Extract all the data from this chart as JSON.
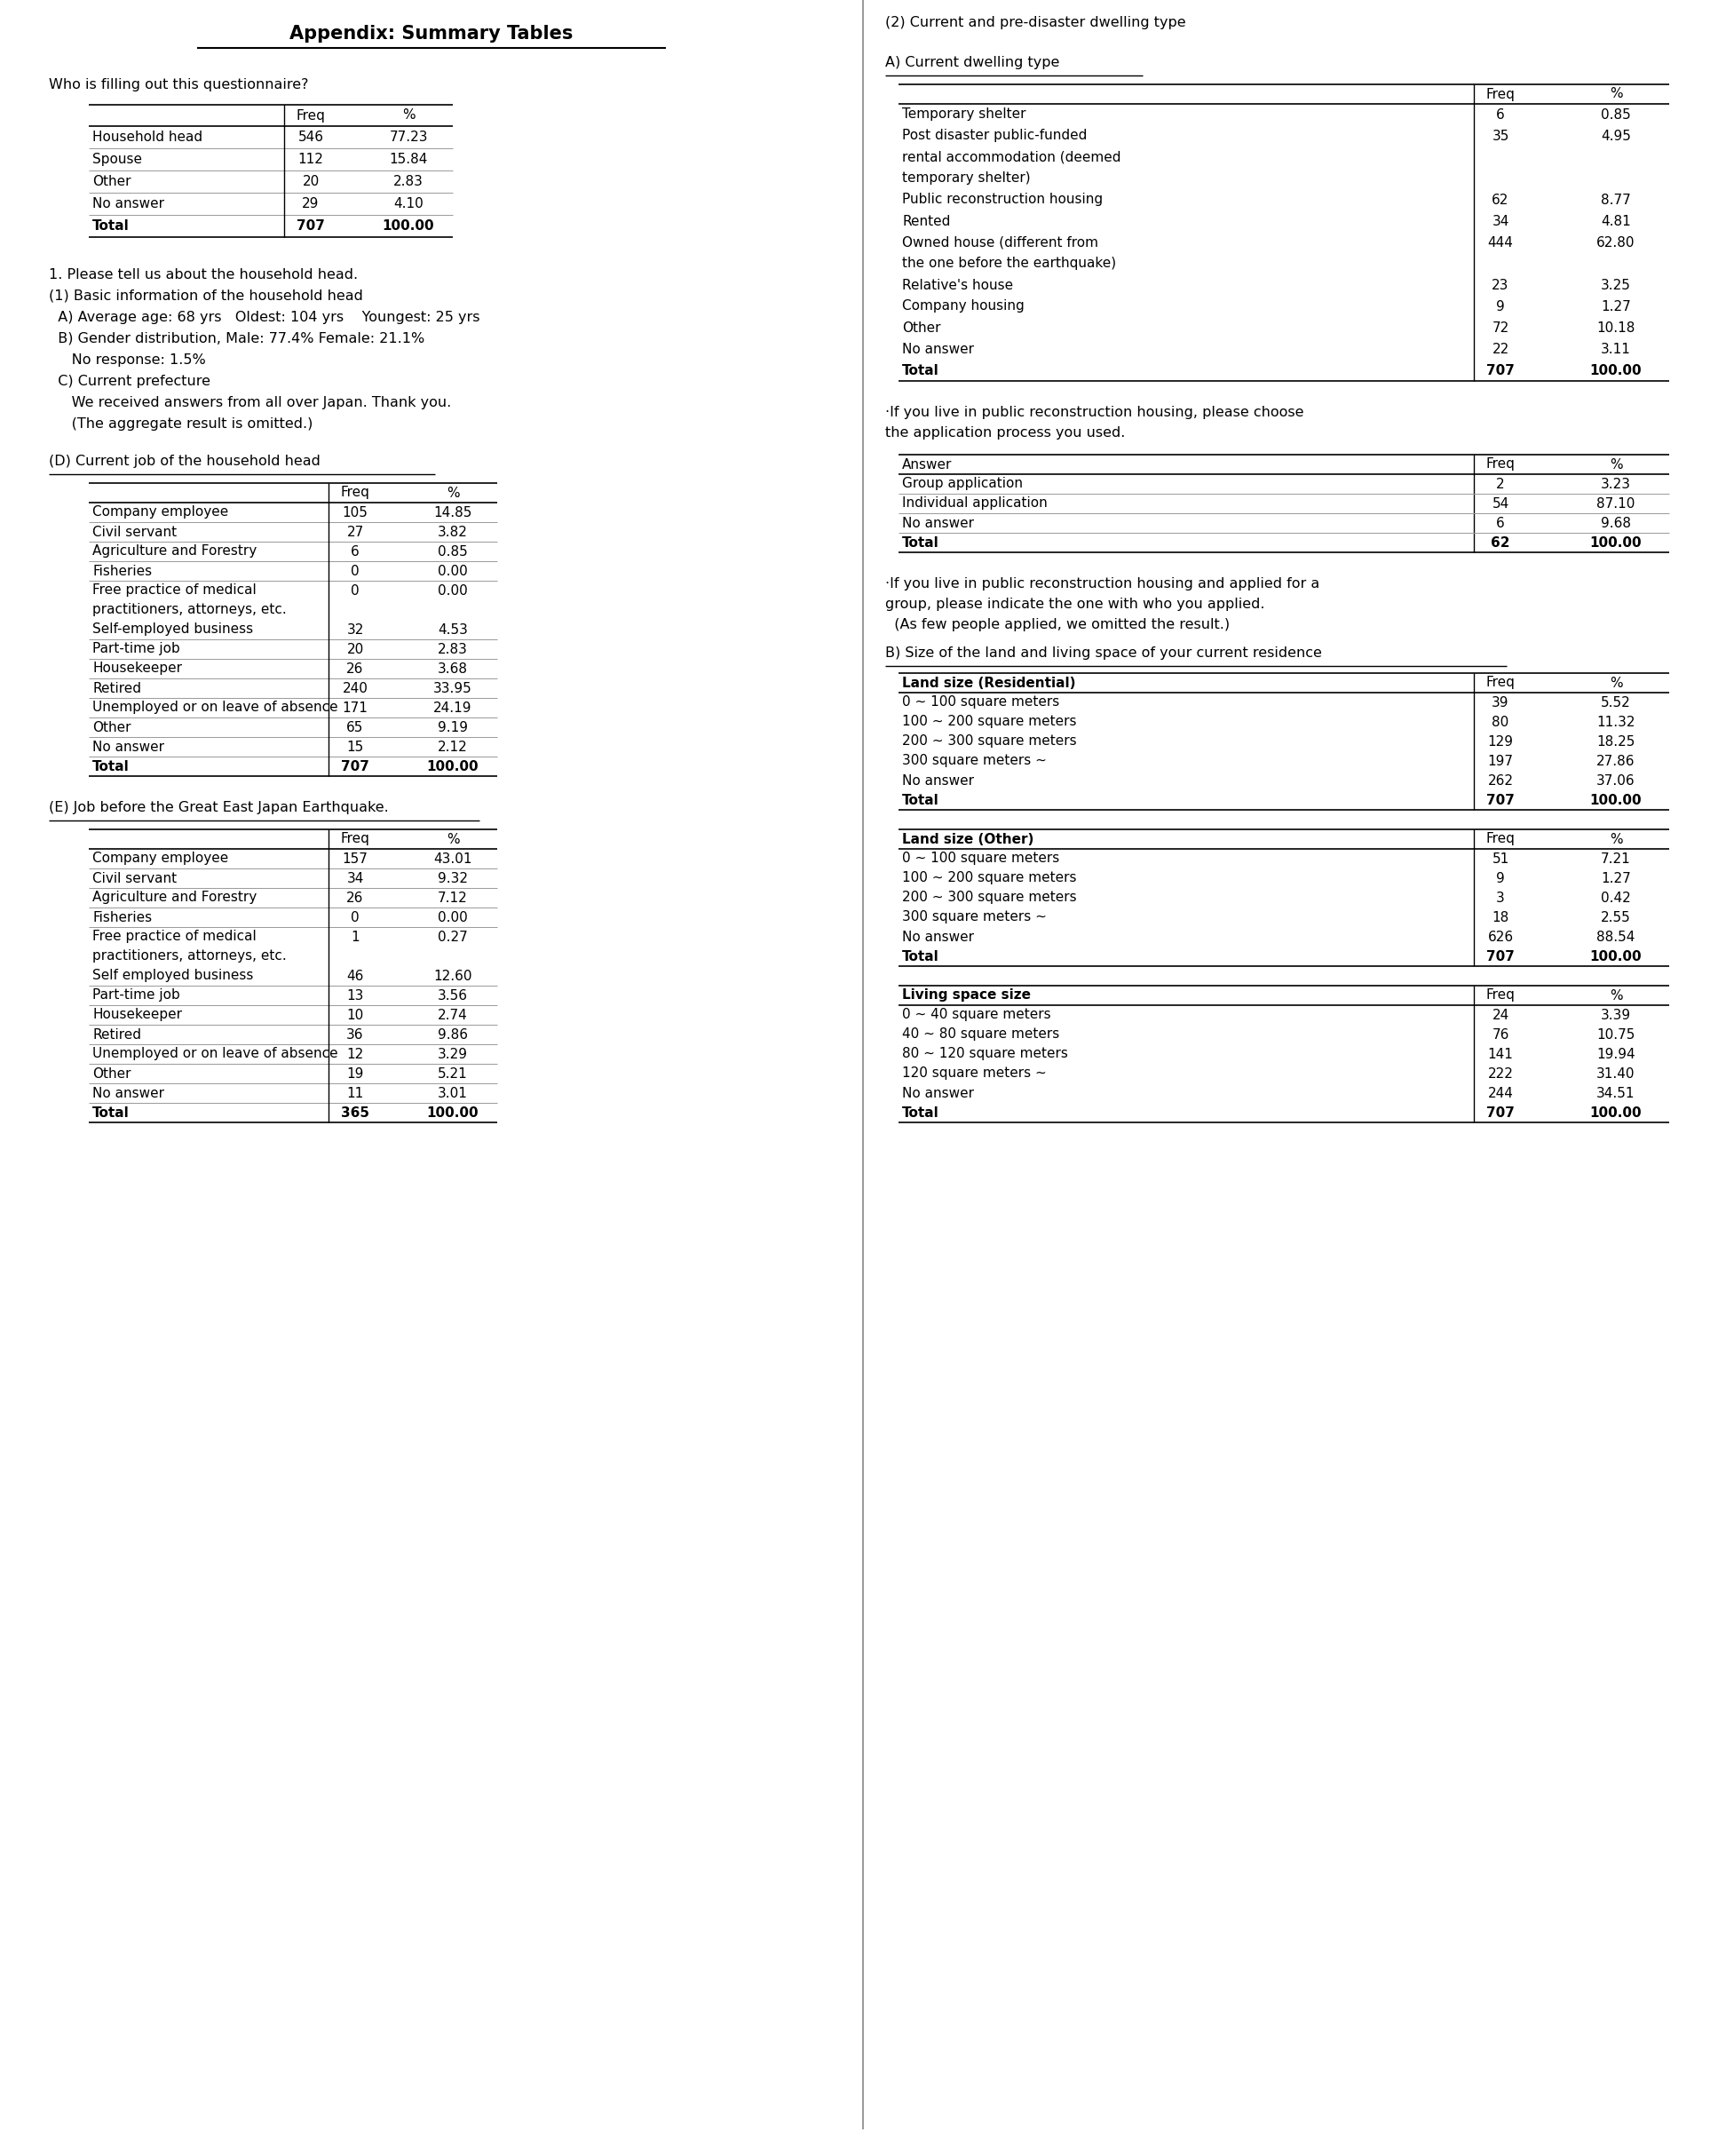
{
  "title": "Appendix: Summary Tables",
  "bg_color": "#ffffff",
  "left_col": {
    "q1_label": "Who is filling out this questionnaire?",
    "q1_headers": [
      "",
      "Freq",
      "%"
    ],
    "q1_rows": [
      [
        "Household head",
        "546",
        "77.23"
      ],
      [
        "Spouse",
        "112",
        "15.84"
      ],
      [
        "Other",
        "20",
        "2.83"
      ],
      [
        "No answer",
        "29",
        "4.10"
      ],
      [
        "Total",
        "707",
        "100.00"
      ]
    ],
    "text_block": [
      "1. Please tell us about the household head.",
      "(1) Basic information of the household head",
      "  A) Average age: 68 yrs   Oldest: 104 yrs    Youngest: 25 yrs",
      "  B) Gender distribution, Male: 77.4% Female: 21.1%",
      "     No response: 1.5%",
      "  C) Current prefecture",
      "     We received answers from all over Japan. Thank you.",
      "     (The aggregate result is omitted.)"
    ],
    "d_label": "(D) Current job of the household head",
    "d_headers": [
      "",
      "Freq",
      "%"
    ],
    "d_rows": [
      [
        "Company employee",
        "105",
        "14.85"
      ],
      [
        "Civil servant",
        "27",
        "3.82"
      ],
      [
        "Agriculture and Forestry",
        "6",
        "0.85"
      ],
      [
        "Fisheries",
        "0",
        "0.00"
      ],
      [
        "Free practice of medical",
        "0",
        "0.00"
      ],
      [
        "practitioners, attorneys, etc.",
        "",
        ""
      ],
      [
        "Self-employed business",
        "32",
        "4.53"
      ],
      [
        "Part-time job",
        "20",
        "2.83"
      ],
      [
        "Housekeeper",
        "26",
        "3.68"
      ],
      [
        "Retired",
        "240",
        "33.95"
      ],
      [
        "Unemployed or on leave of absence",
        "171",
        "24.19"
      ],
      [
        "Other",
        "65",
        "9.19"
      ],
      [
        "No answer",
        "15",
        "2.12"
      ],
      [
        "Total",
        "707",
        "100.00"
      ]
    ],
    "e_label": "(E) Job before the Great East Japan Earthquake.",
    "e_headers": [
      "",
      "Freq",
      "%"
    ],
    "e_rows": [
      [
        "Company employee",
        "157",
        "43.01"
      ],
      [
        "Civil servant",
        "34",
        "9.32"
      ],
      [
        "Agriculture and Forestry",
        "26",
        "7.12"
      ],
      [
        "Fisheries",
        "0",
        "0.00"
      ],
      [
        "Free practice of medical",
        "1",
        "0.27"
      ],
      [
        "practitioners, attorneys, etc.",
        "",
        ""
      ],
      [
        "Self employed business",
        "46",
        "12.60"
      ],
      [
        "Part-time job",
        "13",
        "3.56"
      ],
      [
        "Housekeeper",
        "10",
        "2.74"
      ],
      [
        "Retired",
        "36",
        "9.86"
      ],
      [
        "Unemployed or on leave of absence",
        "12",
        "3.29"
      ],
      [
        "Other",
        "19",
        "5.21"
      ],
      [
        "No answer",
        "11",
        "3.01"
      ],
      [
        "Total",
        "365",
        "100.00"
      ]
    ]
  },
  "right_col": {
    "sec2_label": "(2) Current and pre-disaster dwelling type",
    "a_label": "A) Current dwelling type",
    "a_headers": [
      "",
      "Freq",
      "%"
    ],
    "a_rows": [
      [
        "Temporary shelter",
        "6",
        "0.85"
      ],
      [
        "Post disaster public-funded",
        "35",
        "4.95"
      ],
      [
        "rental accommodation (deemed",
        "",
        ""
      ],
      [
        "temporary shelter)",
        "",
        ""
      ],
      [
        "Public reconstruction housing",
        "62",
        "8.77"
      ],
      [
        "Rented",
        "34",
        "4.81"
      ],
      [
        "Owned house (different from",
        "444",
        "62.80"
      ],
      [
        "the one before the earthquake)",
        "",
        ""
      ],
      [
        "Relative's house",
        "23",
        "3.25"
      ],
      [
        "Company housing",
        "9",
        "1.27"
      ],
      [
        "Other",
        "72",
        "10.18"
      ],
      [
        "No answer",
        "22",
        "3.11"
      ],
      [
        "Total",
        "707",
        "100.00"
      ]
    ],
    "note1": "·If you live in public reconstruction housing, please choose",
    "note1b": "the application process you used.",
    "app_headers": [
      "Answer",
      "Freq",
      "%"
    ],
    "app_rows": [
      [
        "Group application",
        "2",
        "3.23"
      ],
      [
        "Individual application",
        "54",
        "87.10"
      ],
      [
        "No answer",
        "6",
        "9.68"
      ],
      [
        "Total",
        "62",
        "100.00"
      ]
    ],
    "note2": "·If you live in public reconstruction housing and applied for a",
    "note2b": "group, please indicate the one with who you applied.",
    "note2c": "  (As few people applied, we omitted the result.)",
    "b_label": "B) Size of the land and living space of your current residence",
    "land_res_headers": [
      "Land size (Residential)",
      "Freq",
      "%"
    ],
    "land_res_rows": [
      [
        "0 ~ 100 square meters",
        "39",
        "5.52"
      ],
      [
        "100 ~ 200 square meters",
        "80",
        "11.32"
      ],
      [
        "200 ~ 300 square meters",
        "129",
        "18.25"
      ],
      [
        "300 square meters ~",
        "197",
        "27.86"
      ],
      [
        "No answer",
        "262",
        "37.06"
      ],
      [
        "Total",
        "707",
        "100.00"
      ]
    ],
    "land_oth_headers": [
      "Land size (Other)",
      "Freq",
      "%"
    ],
    "land_oth_rows": [
      [
        "0 ~ 100 square meters",
        "51",
        "7.21"
      ],
      [
        "100 ~ 200 square meters",
        "9",
        "1.27"
      ],
      [
        "200 ~ 300 square meters",
        "3",
        "0.42"
      ],
      [
        "300 square meters ~",
        "18",
        "2.55"
      ],
      [
        "No answer",
        "626",
        "88.54"
      ],
      [
        "Total",
        "707",
        "100.00"
      ]
    ],
    "living_headers": [
      "Living space size",
      "Freq",
      "%"
    ],
    "living_rows": [
      [
        "0 ~ 40 square meters",
        "24",
        "3.39"
      ],
      [
        "40 ~ 80 square meters",
        "76",
        "10.75"
      ],
      [
        "80 ~ 120 square meters",
        "141",
        "19.94"
      ],
      [
        "120 square meters ~",
        "222",
        "31.40"
      ],
      [
        "No answer",
        "244",
        "34.51"
      ],
      [
        "Total",
        "707",
        "100.00"
      ]
    ]
  }
}
